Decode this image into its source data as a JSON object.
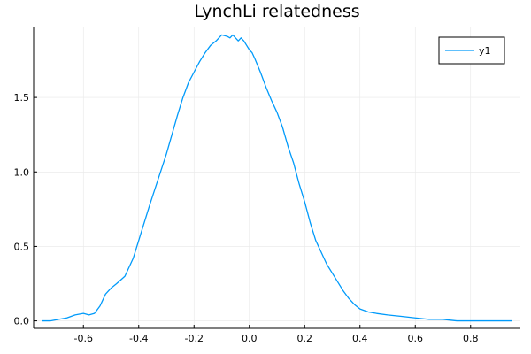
{
  "chart_data": {
    "type": "line",
    "title": "LynchLi relatedness",
    "xlabel": "",
    "ylabel": "",
    "xlim": [
      -0.78,
      0.98
    ],
    "ylim": [
      -0.05,
      1.97
    ],
    "xticks": [
      -0.6,
      -0.4,
      -0.2,
      0.0,
      0.2,
      0.4,
      0.6,
      0.8
    ],
    "xtick_labels": [
      "-0.6",
      "-0.4",
      "-0.2",
      "0.0",
      "0.2",
      "0.4",
      "0.6",
      "0.8"
    ],
    "yticks": [
      0.0,
      0.5,
      1.0,
      1.5
    ],
    "ytick_labels": [
      "0.0",
      "0.5",
      "1.0",
      "1.5"
    ],
    "grid": true,
    "legend_position": "top-right",
    "colors": {
      "series": "#009AFA",
      "axis": "#000000",
      "grid": "#E8E8E8"
    },
    "series": [
      {
        "name": "y1",
        "x": [
          -0.75,
          -0.72,
          -0.69,
          -0.66,
          -0.63,
          -0.6,
          -0.58,
          -0.56,
          -0.54,
          -0.52,
          -0.5,
          -0.48,
          -0.45,
          -0.42,
          -0.39,
          -0.36,
          -0.33,
          -0.3,
          -0.28,
          -0.26,
          -0.24,
          -0.22,
          -0.2,
          -0.18,
          -0.16,
          -0.14,
          -0.12,
          -0.1,
          -0.08,
          -0.07,
          -0.06,
          -0.05,
          -0.04,
          -0.03,
          -0.02,
          -0.01,
          0.0,
          0.01,
          0.02,
          0.04,
          0.06,
          0.08,
          0.1,
          0.12,
          0.14,
          0.16,
          0.18,
          0.2,
          0.22,
          0.24,
          0.26,
          0.28,
          0.3,
          0.32,
          0.34,
          0.36,
          0.38,
          0.4,
          0.43,
          0.46,
          0.5,
          0.55,
          0.6,
          0.65,
          0.7,
          0.75,
          0.8,
          0.85,
          0.9,
          0.95
        ],
        "y": [
          0.0,
          0.0,
          0.01,
          0.02,
          0.04,
          0.05,
          0.04,
          0.05,
          0.1,
          0.18,
          0.22,
          0.25,
          0.3,
          0.42,
          0.6,
          0.78,
          0.95,
          1.12,
          1.25,
          1.38,
          1.5,
          1.6,
          1.67,
          1.74,
          1.8,
          1.85,
          1.88,
          1.92,
          1.91,
          1.9,
          1.92,
          1.9,
          1.88,
          1.9,
          1.88,
          1.85,
          1.82,
          1.8,
          1.76,
          1.67,
          1.57,
          1.48,
          1.4,
          1.3,
          1.17,
          1.06,
          0.92,
          0.8,
          0.66,
          0.54,
          0.46,
          0.38,
          0.32,
          0.26,
          0.2,
          0.15,
          0.11,
          0.08,
          0.06,
          0.05,
          0.04,
          0.03,
          0.02,
          0.01,
          0.01,
          0.0,
          0.0,
          0.0,
          0.0,
          0.0
        ]
      }
    ]
  }
}
